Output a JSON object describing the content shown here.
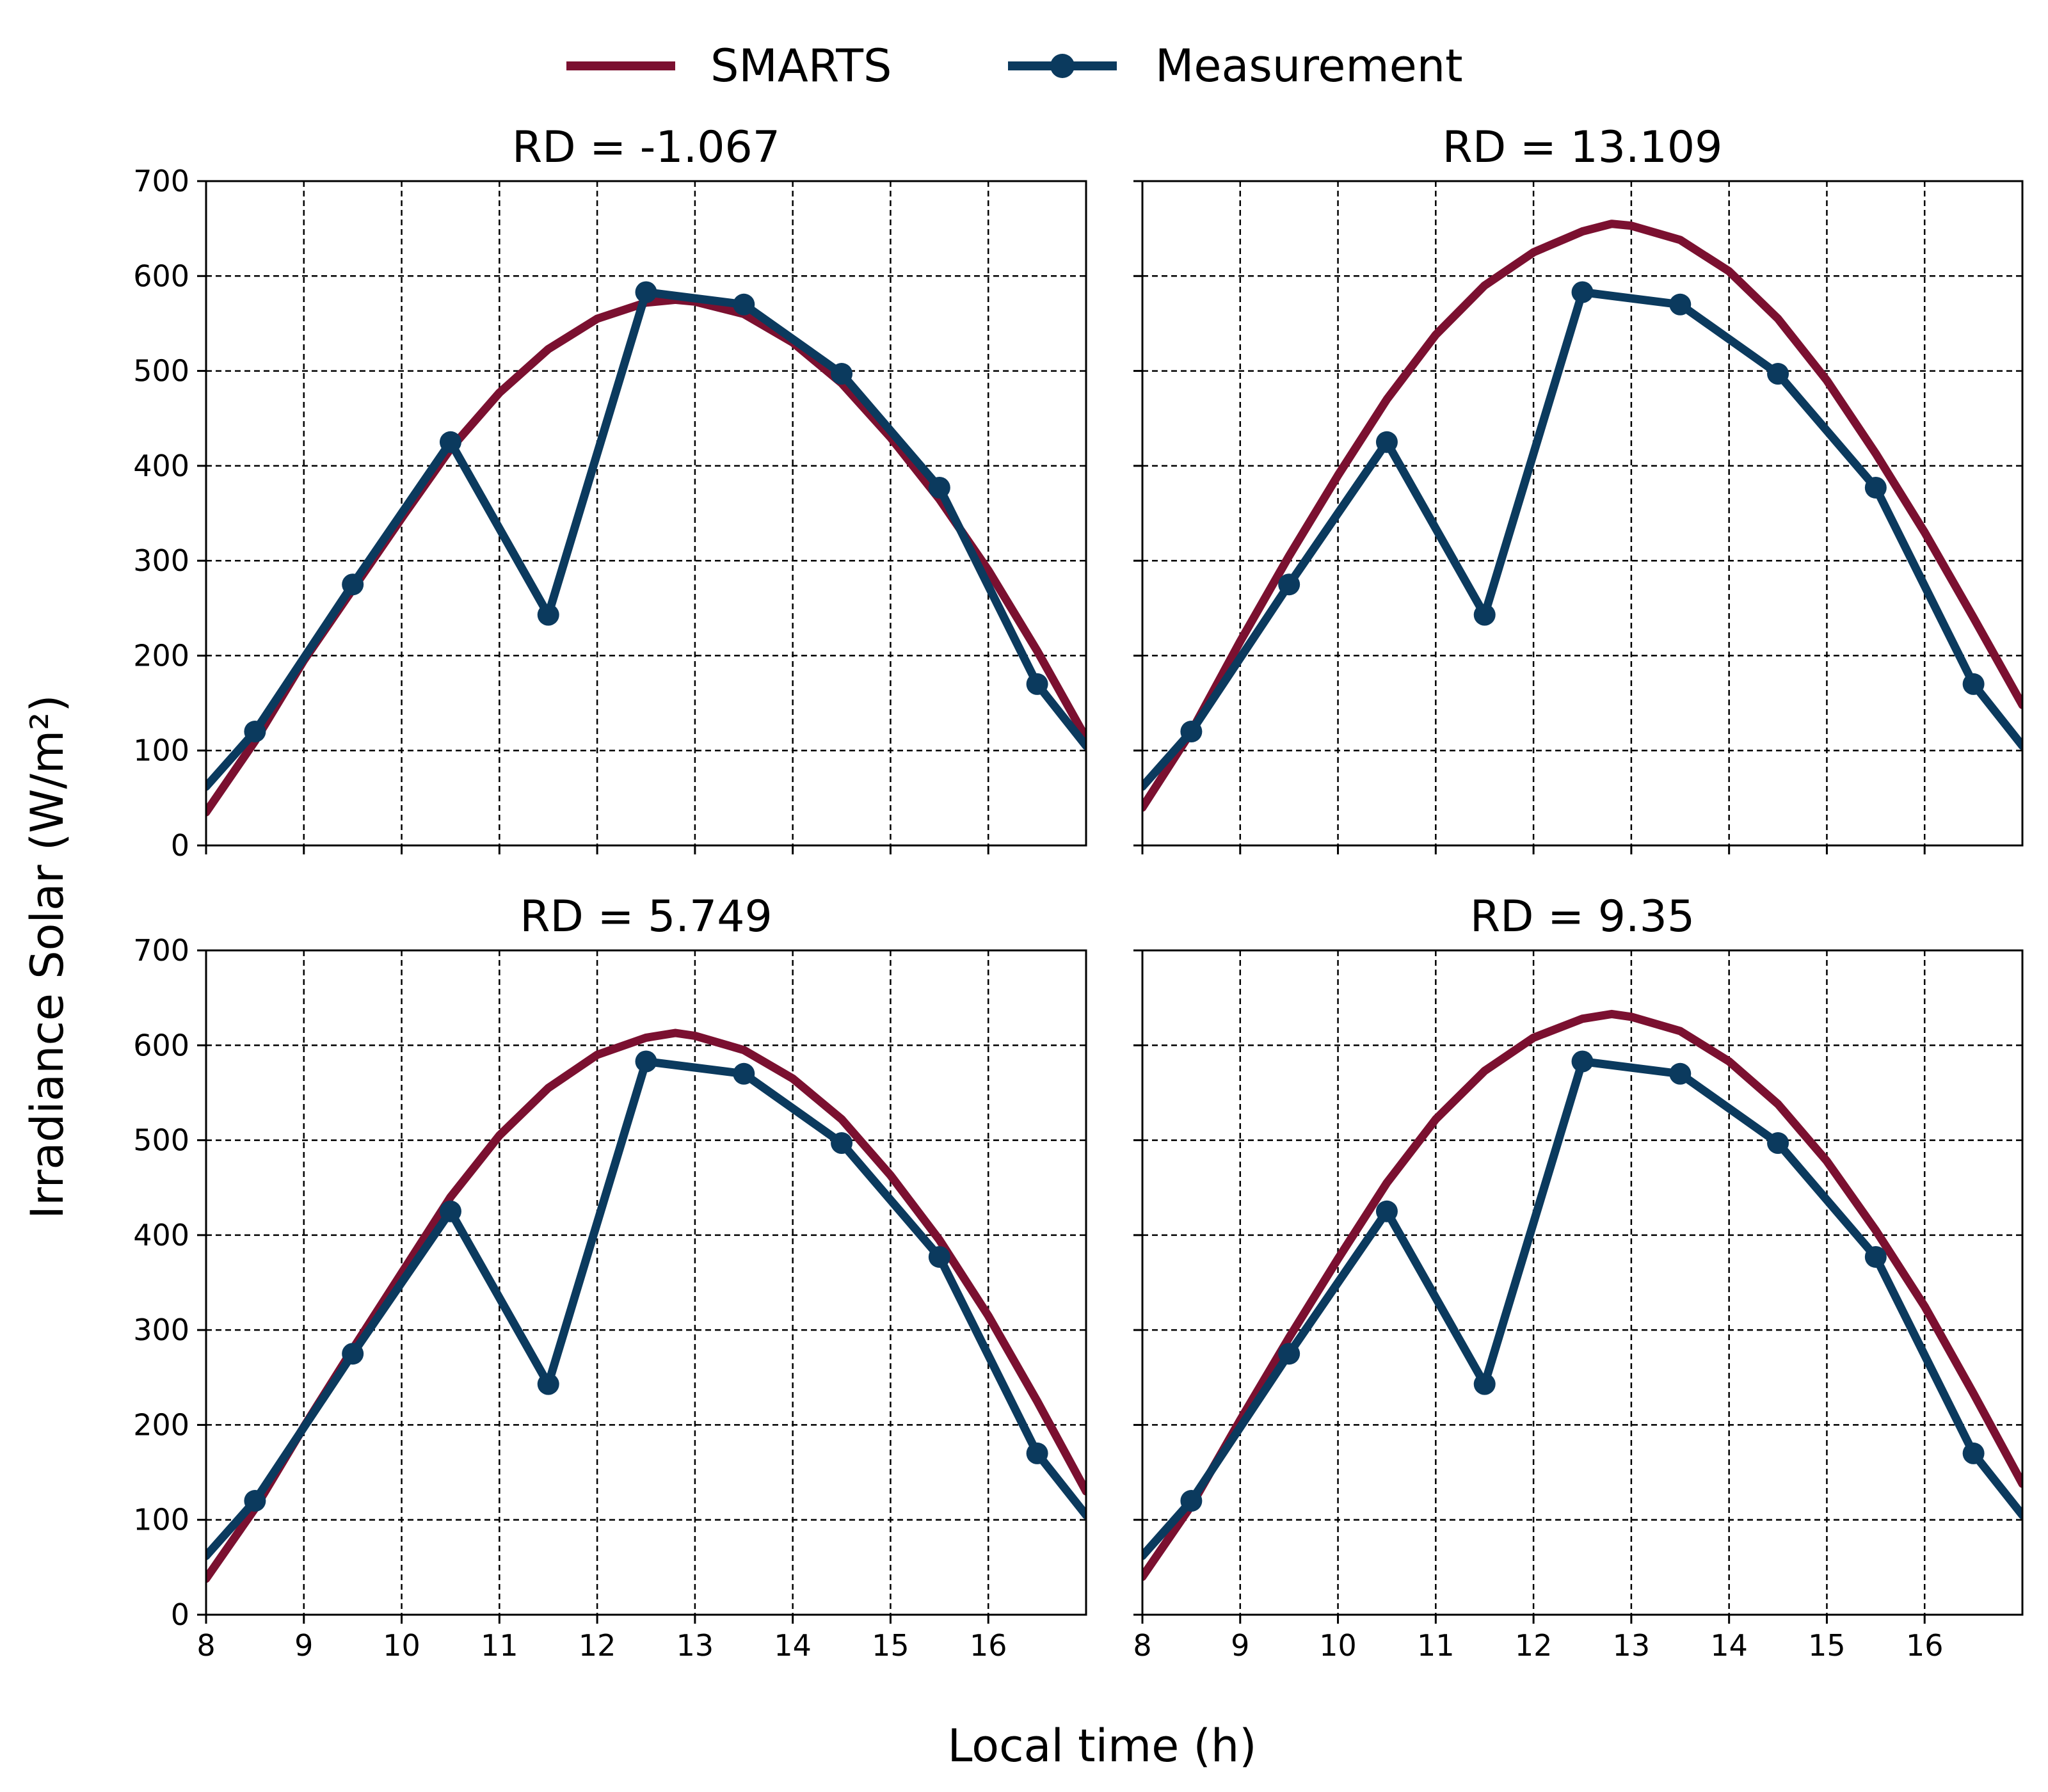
{
  "chart_data": {
    "type": "line",
    "figure_xlabel": "Local time (h)",
    "figure_ylabel": "Irradiance Solar (W/m²)",
    "legend": {
      "placement": "top-center",
      "entries": [
        {
          "name": "SMARTS",
          "color": "#7b1030",
          "marker": "none"
        },
        {
          "name": "Measurement",
          "color": "#0b3a5e",
          "marker": "circle"
        }
      ]
    },
    "xlim": [
      8,
      17
    ],
    "ylim": [
      0,
      700
    ],
    "xticks": [
      8,
      9,
      10,
      11,
      12,
      13,
      14,
      15,
      16
    ],
    "yticks": [
      0,
      100,
      200,
      300,
      400,
      500,
      600,
      700
    ],
    "grid": true,
    "panels": [
      {
        "title": "RD = -1.067",
        "series": [
          {
            "name": "SMARTS",
            "x": [
              8,
              8.5,
              9,
              9.5,
              10,
              10.5,
              11,
              11.5,
              12,
              12.5,
              12.8,
              13,
              13.5,
              14,
              14.5,
              15,
              15.5,
              16,
              16.5,
              17
            ],
            "y": [
              35,
              110,
              195,
              270,
              345,
              418,
              477,
              523,
              555,
              572,
              575,
              573,
              560,
              530,
              487,
              430,
              365,
              290,
              205,
              113
            ]
          },
          {
            "name": "Measurement",
            "x": [
              8,
              8.5,
              9.5,
              10.5,
              11.5,
              12.5,
              13.5,
              14.5,
              15.5,
              16.5,
              17
            ],
            "y": [
              62,
              120,
              275,
              425,
              243,
              583,
              570,
              497,
              377,
              170,
              105
            ]
          }
        ]
      },
      {
        "title": "RD = 13.109",
        "series": [
          {
            "name": "SMARTS",
            "x": [
              8,
              8.5,
              9,
              9.5,
              10,
              10.5,
              11,
              11.5,
              12,
              12.5,
              12.8,
              13,
              13.5,
              14,
              14.5,
              15,
              15.5,
              16,
              16.5,
              17
            ],
            "y": [
              40,
              120,
              215,
              305,
              390,
              470,
              538,
              590,
              625,
              647,
              655,
              653,
              638,
              605,
              555,
              490,
              413,
              330,
              240,
              148
            ]
          },
          {
            "name": "Measurement",
            "x": [
              8,
              8.5,
              9.5,
              10.5,
              11.5,
              12.5,
              13.5,
              14.5,
              15.5,
              16.5,
              17
            ],
            "y": [
              62,
              120,
              275,
              425,
              243,
              583,
              570,
              497,
              377,
              170,
              105
            ]
          }
        ]
      },
      {
        "title": "RD = 5.749",
        "series": [
          {
            "name": "SMARTS",
            "x": [
              8,
              8.5,
              9,
              9.5,
              10,
              10.5,
              11,
              11.5,
              12,
              12.5,
              12.8,
              13,
              13.5,
              14,
              14.5,
              15,
              15.5,
              16,
              16.5,
              17
            ],
            "y": [
              38,
              112,
              198,
              280,
              360,
              440,
              505,
              555,
              590,
              608,
              613,
              610,
              595,
              565,
              522,
              463,
              395,
              315,
              225,
              130
            ]
          },
          {
            "name": "Measurement",
            "x": [
              8,
              8.5,
              9.5,
              10.5,
              11.5,
              12.5,
              13.5,
              14.5,
              15.5,
              16.5,
              17
            ],
            "y": [
              62,
              120,
              275,
              425,
              243,
              583,
              570,
              497,
              377,
              170,
              105
            ]
          }
        ]
      },
      {
        "title": "RD = 9.35",
        "series": [
          {
            "name": "SMARTS",
            "x": [
              8,
              8.5,
              9,
              9.5,
              10,
              10.5,
              11,
              11.5,
              12,
              12.5,
              12.8,
              13,
              13.5,
              14,
              14.5,
              15,
              15.5,
              16,
              16.5,
              17
            ],
            "y": [
              40,
              115,
              205,
              292,
              375,
              455,
              522,
              573,
              608,
              628,
              633,
              630,
              615,
              583,
              538,
              478,
              405,
              325,
              233,
              138
            ]
          },
          {
            "name": "Measurement",
            "x": [
              8,
              8.5,
              9.5,
              10.5,
              11.5,
              12.5,
              13.5,
              14.5,
              15.5,
              16.5,
              17
            ],
            "y": [
              62,
              120,
              275,
              425,
              243,
              583,
              570,
              497,
              377,
              170,
              105
            ]
          }
        ]
      }
    ]
  }
}
